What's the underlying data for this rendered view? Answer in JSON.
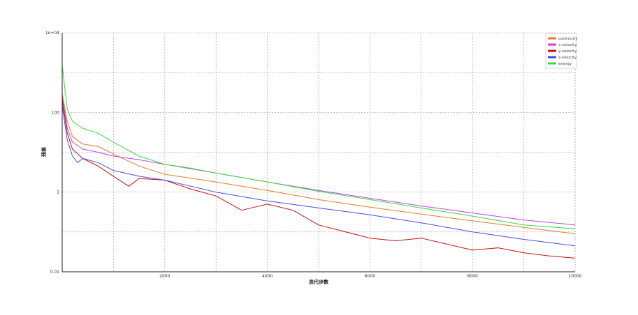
{
  "chart_data": {
    "type": "line",
    "title": "",
    "xlabel": "迭代步数",
    "ylabel": "残差",
    "xlim": [
      0,
      10000
    ],
    "ylim": [
      0.01,
      10000
    ],
    "yscale": "log",
    "x_ticks": [
      2000,
      4000,
      6000,
      8000,
      10000
    ],
    "x_tick_labels": [
      "2000",
      "4000",
      "6000",
      "8000",
      "10000"
    ],
    "y_ticks": [
      0.01,
      1,
      100,
      10000
    ],
    "y_tick_labels": [
      "0.01",
      "1",
      "100",
      "1e+04"
    ],
    "grid": true,
    "legend_position": "top-right",
    "series": [
      {
        "name": "continuity",
        "color": "#e07a2a",
        "x": [
          0,
          100,
          200,
          400,
          700,
          1000,
          1500,
          2000,
          3000,
          4000,
          5000,
          6000,
          7000,
          8000,
          9000,
          10000
        ],
        "y": [
          300,
          60,
          25,
          16,
          14,
          9,
          4.5,
          2.8,
          1.8,
          1.1,
          0.65,
          0.42,
          0.28,
          0.19,
          0.13,
          0.09
        ]
      },
      {
        "name": "x-velocity",
        "color": "#c040e0",
        "x": [
          0,
          100,
          200,
          400,
          700,
          1000,
          1500,
          2000,
          3000,
          4000,
          5000,
          6000,
          7000,
          8000,
          9000,
          10000
        ],
        "y": [
          250,
          40,
          18,
          12,
          10,
          8,
          6.5,
          5,
          3,
          1.8,
          1.1,
          0.7,
          0.45,
          0.3,
          0.2,
          0.15
        ]
      },
      {
        "name": "y-velocity",
        "color": "#c01010",
        "x": [
          0,
          100,
          200,
          400,
          700,
          1000,
          1300,
          1500,
          2000,
          2500,
          3000,
          3500,
          4000,
          4500,
          5000,
          6000,
          6500,
          7000,
          8000,
          8500,
          9000,
          9500,
          10000
        ],
        "y": [
          200,
          30,
          12,
          7,
          4.5,
          2.5,
          1.4,
          2.2,
          2,
          1.2,
          0.8,
          0.35,
          0.5,
          0.35,
          0.15,
          0.07,
          0.06,
          0.07,
          0.035,
          0.04,
          0.03,
          0.025,
          0.022
        ]
      },
      {
        "name": "z-velocity",
        "color": "#4a4ae6",
        "x": [
          0,
          100,
          200,
          300,
          400,
          700,
          1000,
          1500,
          2000,
          3000,
          4000,
          5000,
          6000,
          7000,
          8000,
          9000,
          10000
        ],
        "y": [
          150,
          20,
          8,
          5.5,
          7,
          5.5,
          3.5,
          2.5,
          2,
          1,
          0.6,
          0.4,
          0.27,
          0.17,
          0.1,
          0.065,
          0.045
        ]
      },
      {
        "name": "energy",
        "color": "#33dd33",
        "x": [
          0,
          100,
          200,
          400,
          700,
          1000,
          1500,
          2000,
          2500,
          3000,
          4000,
          5000,
          6000,
          7000,
          8000,
          9000,
          10000
        ],
        "y": [
          1500,
          120,
          60,
          40,
          30,
          18,
          8,
          5,
          4,
          3,
          1.8,
          1.05,
          0.65,
          0.4,
          0.25,
          0.15,
          0.12
        ]
      }
    ]
  }
}
